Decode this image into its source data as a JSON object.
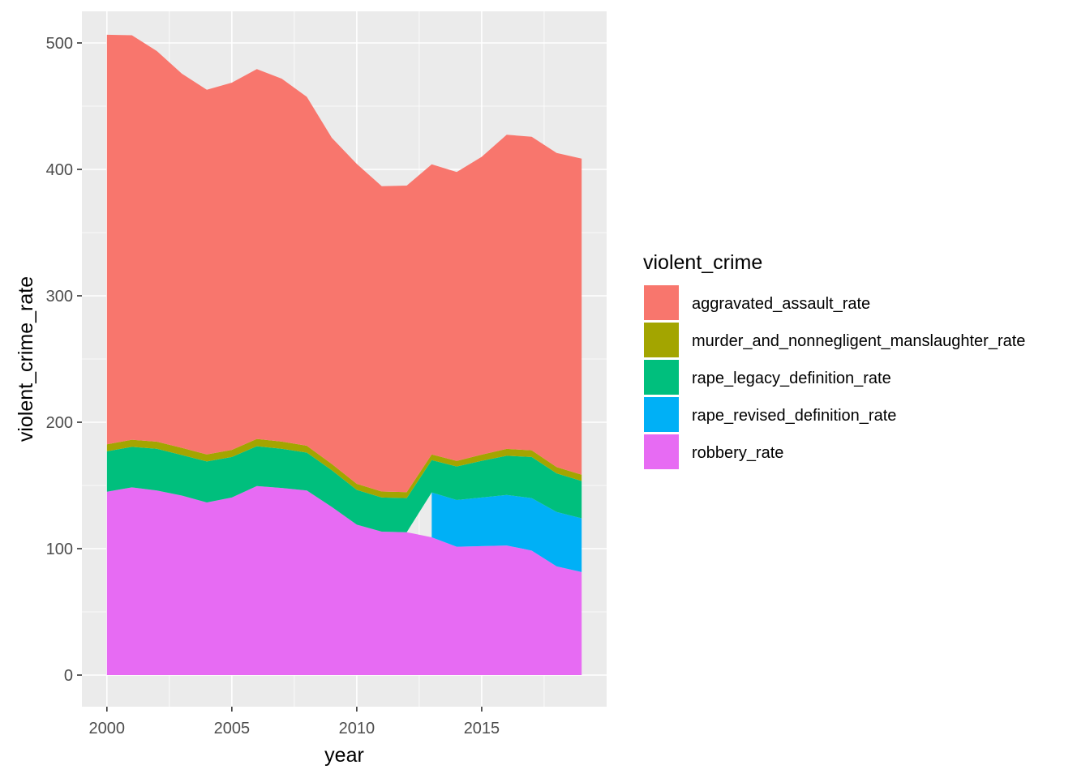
{
  "chart_data": {
    "type": "area",
    "stacked": true,
    "xlabel": "year",
    "ylabel": "violent_crime_rate",
    "xlim": [
      1999.0,
      2020.0
    ],
    "ylim": [
      -25,
      525
    ],
    "x_ticks": [
      2000,
      2005,
      2010,
      2015
    ],
    "y_ticks": [
      0,
      100,
      200,
      300,
      400,
      500
    ],
    "grid": true,
    "legend": {
      "title": "violent_crime",
      "position": "right"
    },
    "x": [
      2000,
      2001,
      2002,
      2003,
      2004,
      2005,
      2006,
      2007,
      2008,
      2009,
      2010,
      2011,
      2012,
      2013,
      2014,
      2015,
      2016,
      2017,
      2018,
      2019
    ],
    "series": [
      {
        "name": "robbery_rate",
        "color": "#E76BF3",
        "values": [
          145,
          148.5,
          146,
          142,
          136.5,
          140.5,
          149.5,
          148,
          146,
          133,
          119,
          113.5,
          113,
          109,
          101.5,
          102,
          102.5,
          98.5,
          86,
          81.5
        ]
      },
      {
        "name": "rape_revised_definition_rate",
        "color": "#00B0F6",
        "values": [
          null,
          null,
          null,
          null,
          null,
          null,
          null,
          null,
          null,
          null,
          null,
          null,
          null,
          35.5,
          37,
          38.5,
          40,
          41.5,
          43,
          42.5
        ]
      },
      {
        "name": "rape_legacy_definition_rate",
        "color": "#00BF7D",
        "values": [
          32,
          32,
          33,
          32,
          32.5,
          32,
          31.5,
          31,
          30,
          29,
          27.5,
          27,
          27,
          25.5,
          26.5,
          29,
          31,
          32.5,
          30.5,
          29.5
        ]
      },
      {
        "name": "murder_and_nonnegligent_manslaughter_rate",
        "color": "#A3A500",
        "values": [
          5.5,
          5.6,
          5.6,
          5.7,
          5.5,
          5.6,
          5.8,
          5.7,
          5.4,
          5.0,
          4.8,
          4.7,
          4.7,
          4.5,
          4.4,
          4.9,
          5.4,
          5.3,
          5.0,
          5.0
        ]
      },
      {
        "name": "aggravated_assault_rate",
        "color": "#F8766D",
        "values": [
          324,
          320,
          309,
          296,
          288.5,
          290.5,
          292.5,
          287,
          276,
          258,
          253,
          241.5,
          242.5,
          229.5,
          228.5,
          235.5,
          248.5,
          248,
          248.5,
          250
        ]
      }
    ]
  }
}
